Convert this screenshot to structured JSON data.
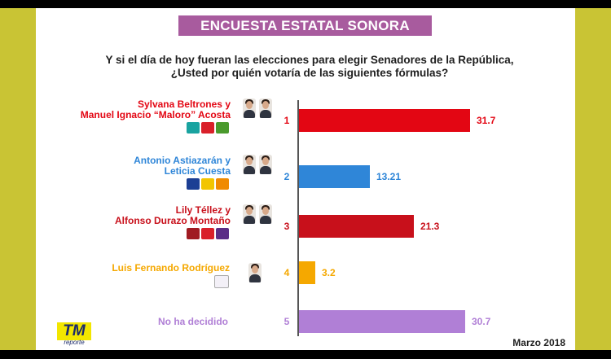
{
  "header": {
    "title": "ENCUESTA ESTATAL SONORA"
  },
  "question": {
    "line1": "Y si el día de hoy fueran las elecciones para elegir Senadores de la República,",
    "line2": "¿Usted por quién votaría de las siguientes fórmulas?"
  },
  "colors": {
    "banner": "#a85b9e",
    "red": "#e30613",
    "blue": "#2f86d8",
    "dark_red": "#c8101b",
    "orange": "#f5a800",
    "purple": "#b07fd6",
    "frame_yellow": "#c9c434"
  },
  "chart_data": {
    "type": "bar",
    "orientation": "horizontal",
    "categories": [
      "Sylvana Beltrones y Manuel Ignacio “Maloro” Acosta",
      "Antonio Astiazarán y Leticia Cuesta",
      "Lily Téllez y Alfonso Durazo Montaño",
      "Luis Fernando Rodríguez",
      "No ha decidido"
    ],
    "ranks": [
      "1",
      "2",
      "3",
      "4",
      "5"
    ],
    "values": [
      31.7,
      13.21,
      21.3,
      3.2,
      30.7
    ],
    "value_labels": [
      "31.7",
      "13.21",
      "21.3",
      "3.2",
      "30.7"
    ],
    "colors": [
      "#e30613",
      "#2f86d8",
      "#c8101b",
      "#f5a800",
      "#b07fd6"
    ],
    "title": "ENCUESTA ESTATAL SONORA",
    "xlabel": "",
    "ylabel": "",
    "xlim": [
      0,
      36
    ],
    "grid": false,
    "legend": "none"
  },
  "candidates": [
    {
      "name_line1": "Sylvana Beltrones y",
      "name_line2": "Manuel Ignacio “Maloro” Acosta",
      "photo_count": 2,
      "logos": [
        "pvem-panal-logo",
        "pri-logo",
        "verde-logo"
      ]
    },
    {
      "name_line1": "Antonio Astiazarán y",
      "name_line2": "Leticia Cuesta",
      "photo_count": 2,
      "logos": [
        "pan-logo",
        "prd-logo",
        "mc-logo"
      ]
    },
    {
      "name_line1": "Lily Téllez y",
      "name_line2": "Alfonso Durazo Montaño",
      "photo_count": 2,
      "logos": [
        "morena-logo",
        "pt-logo",
        "pes-logo"
      ]
    },
    {
      "name_line1": "Luis Fernando Rodríguez",
      "name_line2": "",
      "photo_count": 1,
      "logos": [
        "independiente-logo"
      ]
    },
    {
      "name_line1": "No ha decidido",
      "name_line2": "",
      "photo_count": 0,
      "logos": []
    }
  ],
  "branding": {
    "logo_text": "TM",
    "logo_sub": "reporte"
  },
  "footer": {
    "date": "Marzo 2018"
  }
}
